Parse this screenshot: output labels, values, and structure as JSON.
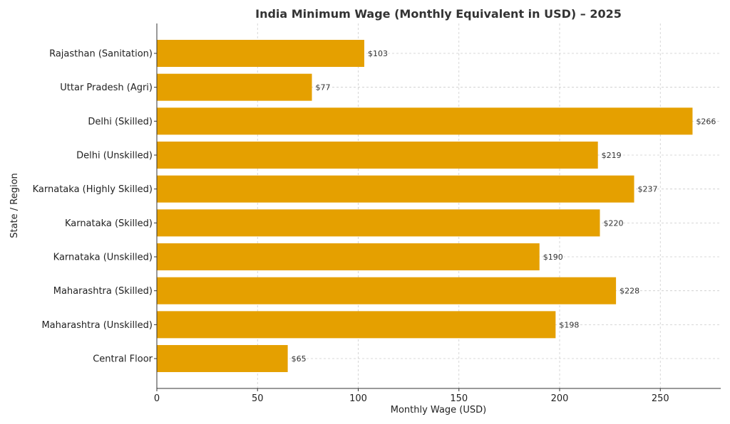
{
  "chart_data": {
    "type": "bar",
    "orientation": "horizontal",
    "title": "India Minimum Wage (Monthly Equivalent in USD) – 2025",
    "xlabel": "Monthly Wage (USD)",
    "ylabel": "State / Region",
    "xlim": [
      0,
      280
    ],
    "xticks": [
      0,
      50,
      100,
      150,
      200,
      250
    ],
    "grid": true,
    "bar_color": "#E5A000",
    "value_prefix": "$",
    "categories": [
      "Rajasthan (Sanitation)",
      "Uttar Pradesh (Agri)",
      "Delhi (Skilled)",
      "Delhi (Unskilled)",
      "Karnataka (Highly Skilled)",
      "Karnataka (Skilled)",
      "Karnataka (Unskilled)",
      "Maharashtra (Skilled)",
      "Maharashtra (Unskilled)",
      "Central Floor"
    ],
    "values": [
      103,
      77,
      266,
      219,
      237,
      220,
      190,
      228,
      198,
      65
    ],
    "value_labels": [
      "$103",
      "$77",
      "$266",
      "$219",
      "$237",
      "$220",
      "$190",
      "$228",
      "$198",
      "$65"
    ]
  }
}
